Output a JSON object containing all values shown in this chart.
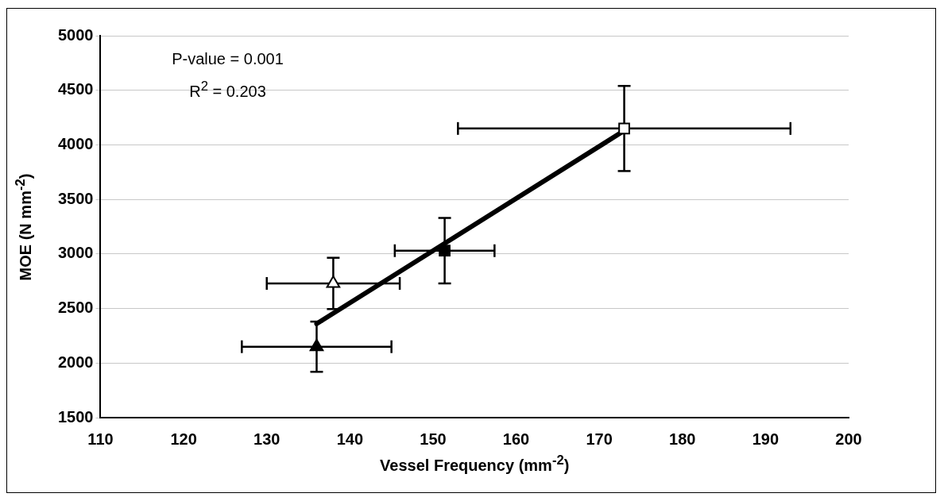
{
  "chart_data": {
    "type": "scatter",
    "xlabel": "Vessel Frequency (mm$^{-2}$)",
    "ylabel": "MOE (N mm$^{-2}$)",
    "annotations": [
      "P-value = 0.001",
      "R$^{2}$ = 0.203"
    ],
    "xlim": [
      110,
      200
    ],
    "xticks": [
      110,
      120,
      130,
      140,
      150,
      160,
      170,
      180,
      190,
      200
    ],
    "ylim": [
      1500,
      5000
    ],
    "yticks": [
      1500,
      2000,
      2500,
      3000,
      3500,
      4000,
      4500,
      5000
    ],
    "grid": "y",
    "legend": false,
    "series": [
      {
        "type": "line",
        "color": "#000000",
        "x": [
          136,
          173
        ],
        "values": [
          2360,
          4130
        ],
        "marker": "none",
        "line_style": "solid"
      },
      {
        "color": "#000000",
        "marker": "triangle",
        "x": [
          136
        ],
        "values": [
          2150
        ],
        "errors": [
          230
        ],
        "xerrors": [
          9
        ]
      },
      {
        "color": "#ffffff",
        "marker": "triangle",
        "x": [
          138
        ],
        "values": [
          2730
        ],
        "errors": [
          235
        ],
        "xerrors": [
          8
        ]
      },
      {
        "color": "#000000",
        "marker": "square",
        "x": [
          151.4
        ],
        "values": [
          3030
        ],
        "errors": [
          300
        ],
        "xerrors": [
          6
        ]
      },
      {
        "color": "#ffffff",
        "marker": "square",
        "x": [
          173
        ],
        "values": [
          4150
        ],
        "errors": [
          390
        ],
        "xerrors": [
          20
        ]
      }
    ]
  }
}
